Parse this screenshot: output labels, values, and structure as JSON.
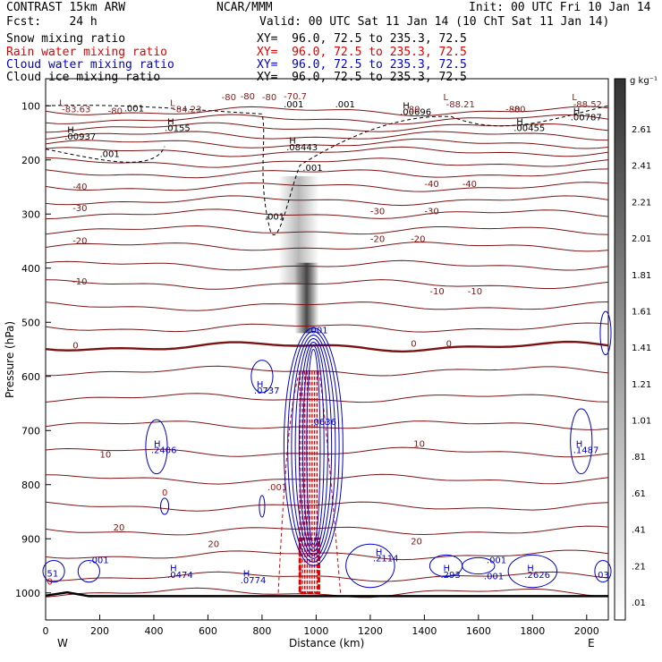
{
  "header": {
    "model": "CONTRAST 15km ARW",
    "org": "NCAR/MMM",
    "init": "Init: 00 UTC Fri 10 Jan 14",
    "fcst": "Fcst:    24 h",
    "valid": "Valid: 00 UTC Sat 11 Jan 14 (10 ChT Sat 11 Jan 14)"
  },
  "fields": [
    {
      "name": "Snow mixing ratio",
      "xy": "XY=  96.0, 72.5 to 235.3, 72.5",
      "color": "#000000"
    },
    {
      "name": "Rain water mixing ratio",
      "xy": "XY=  96.0, 72.5 to 235.3, 72.5",
      "color": "#e00000"
    },
    {
      "name": "Cloud water mixing ratio",
      "xy": "XY=  96.0, 72.5 to 235.3, 72.5",
      "color": "#0000cc"
    },
    {
      "name": "Cloud ice mixing ratio",
      "xy": "XY=  96.0, 72.5 to 235.3, 72.5",
      "color": "#000000"
    }
  ],
  "chart_data": {
    "type": "heatmap",
    "xlabel": "Distance (km)",
    "ylabel": "Pressure (hPa)",
    "xlim": [
      0,
      2080
    ],
    "ylim": [
      1050,
      50
    ],
    "x_ticks": [
      "0",
      "200",
      "400",
      "600",
      "800",
      "1000",
      "1200",
      "1400",
      "1600",
      "1800",
      "2000"
    ],
    "y_ticks": [
      "100",
      "200",
      "300",
      "400",
      "500",
      "600",
      "700",
      "800",
      "900",
      "1000"
    ],
    "x_end_labels": {
      "left": "W",
      "right": "E"
    },
    "colorbar": {
      "unit": "g kg⁻¹",
      "labels": [
        "2.61",
        "2.41",
        "2.21",
        "2.01",
        "1.81",
        "1.61",
        "1.41",
        "1.21",
        "1.01",
        ".81",
        ".61",
        ".41",
        ".21",
        ".01"
      ]
    },
    "temperature_isotherms": [
      {
        "value": -80,
        "label": "-80"
      },
      {
        "value": -40,
        "label": "-40"
      },
      {
        "value": -30,
        "label": "-30"
      },
      {
        "value": -20,
        "label": "-20"
      },
      {
        "value": -10,
        "label": "-10"
      },
      {
        "value": 0,
        "label": "0"
      },
      {
        "value": 10,
        "label": "10"
      },
      {
        "value": 20,
        "label": "20"
      }
    ],
    "annotations": [
      {
        "text": "L",
        "x": 50,
        "p": 100,
        "color": "#8b1a1a"
      },
      {
        "text": "-83.63",
        "x": 60,
        "p": 112,
        "color": "#8b1a1a"
      },
      {
        "text": "-80",
        "x": 230,
        "p": 115,
        "color": "#8b1a1a"
      },
      {
        "text": ".001",
        "x": 290,
        "p": 110,
        "color": "#000000"
      },
      {
        "text": "L",
        "x": 460,
        "p": 100,
        "color": "#8b1a1a"
      },
      {
        "text": "-84.23",
        "x": 470,
        "p": 112,
        "color": "#8b1a1a"
      },
      {
        "text": "-80",
        "x": 650,
        "p": 90,
        "color": "#8b1a1a"
      },
      {
        "text": "-80",
        "x": 800,
        "p": 90,
        "color": "#8b1a1a"
      },
      {
        "text": "-70.7",
        "x": 880,
        "p": 88,
        "color": "#8b1a1a"
      },
      {
        "text": ".001",
        "x": 880,
        "p": 103,
        "color": "#000000"
      },
      {
        "text": ".001",
        "x": 1070,
        "p": 103,
        "color": "#000000"
      },
      {
        "text": "L",
        "x": 1470,
        "p": 90,
        "color": "#8b1a1a"
      },
      {
        "text": "-88.21",
        "x": 1480,
        "p": 103,
        "color": "#8b1a1a"
      },
      {
        "text": "H",
        "x": 1320,
        "p": 105,
        "color": "#000000"
      },
      {
        "text": ".00696",
        "x": 1310,
        "p": 117,
        "color": "#000000"
      },
      {
        "text": "-80",
        "x": 1330,
        "p": 112,
        "color": "#8b1a1a"
      },
      {
        "text": "-80",
        "x": 1700,
        "p": 112,
        "color": "#8b1a1a"
      },
      {
        "text": "L",
        "x": 1945,
        "p": 90,
        "color": "#8b1a1a"
      },
      {
        "text": "-88.52",
        "x": 1950,
        "p": 103,
        "color": "#8b1a1a"
      },
      {
        "text": "H",
        "x": 1950,
        "p": 115,
        "color": "#000000"
      },
      {
        "text": ".00787",
        "x": 1940,
        "p": 127,
        "color": "#000000"
      },
      {
        "text": "H",
        "x": 1740,
        "p": 135,
        "color": "#000000"
      },
      {
        "text": ".00455",
        "x": 1730,
        "p": 147,
        "color": "#000000"
      },
      {
        "text": "H",
        "x": 80,
        "p": 150,
        "color": "#000000"
      },
      {
        "text": ".00937",
        "x": 70,
        "p": 162,
        "color": "#000000"
      },
      {
        "text": "H",
        "x": 450,
        "p": 135,
        "color": "#000000"
      },
      {
        "text": ".0155",
        "x": 440,
        "p": 147,
        "color": "#000000"
      },
      {
        "text": ".001",
        "x": 200,
        "p": 195,
        "color": "#000000"
      },
      {
        "text": "H",
        "x": 900,
        "p": 170,
        "color": "#000000"
      },
      {
        "text": ".08443",
        "x": 890,
        "p": 182,
        "color": "#000000"
      },
      {
        "text": ".001",
        "x": 950,
        "p": 220,
        "color": "#000000"
      },
      {
        "text": ".001",
        "x": 810,
        "p": 310,
        "color": "#000000"
      },
      {
        "text": ".001",
        "x": 970,
        "p": 520,
        "color": "#0000cc"
      },
      {
        "text": "H",
        "x": 780,
        "p": 620,
        "color": "#0000cc"
      },
      {
        "text": ".0737",
        "x": 770,
        "p": 632,
        "color": "#0000cc"
      },
      {
        "text": ".0636",
        "x": 980,
        "p": 690,
        "color": "#0000cc"
      },
      {
        "text": "H",
        "x": 400,
        "p": 730,
        "color": "#0000cc"
      },
      {
        "text": ".2406",
        "x": 390,
        "p": 742,
        "color": "#0000cc"
      },
      {
        "text": "H",
        "x": 1960,
        "p": 730,
        "color": "#0000cc"
      },
      {
        "text": ".1487",
        "x": 1950,
        "p": 742,
        "color": "#0000cc"
      },
      {
        "text": ".001",
        "x": 820,
        "p": 810,
        "color": "#e00000"
      },
      {
        "text": "0",
        "x": 430,
        "p": 820,
        "color": "#e00000"
      },
      {
        "text": "H",
        "x": 460,
        "p": 960,
        "color": "#0000cc"
      },
      {
        "text": ".0474",
        "x": 450,
        "p": 972,
        "color": "#0000cc"
      },
      {
        "text": ".001",
        "x": 160,
        "p": 945,
        "color": "#0000cc"
      },
      {
        "text": "H",
        "x": 730,
        "p": 970,
        "color": "#0000cc"
      },
      {
        "text": ".0774",
        "x": 720,
        "p": 982,
        "color": "#0000cc"
      },
      {
        "text": "H",
        "x": 1220,
        "p": 930,
        "color": "#0000cc"
      },
      {
        "text": ".2114",
        "x": 1210,
        "p": 942,
        "color": "#0000cc"
      },
      {
        "text": "H",
        "x": 1470,
        "p": 960,
        "color": "#0000cc"
      },
      {
        "text": ".293",
        "x": 1460,
        "p": 972,
        "color": "#0000cc"
      },
      {
        "text": ".001",
        "x": 1630,
        "p": 945,
        "color": "#0000cc"
      },
      {
        "text": ".001",
        "x": 1620,
        "p": 975,
        "color": "#0000cc"
      },
      {
        "text": "H",
        "x": 1780,
        "p": 960,
        "color": "#0000cc"
      },
      {
        "text": ".2626",
        "x": 1770,
        "p": 972,
        "color": "#0000cc"
      },
      {
        "text": ".03",
        "x": 2030,
        "p": 972,
        "color": "#0000cc"
      },
      {
        "text": "51",
        "x": 5,
        "p": 970,
        "color": "#0000cc"
      },
      {
        "text": "0",
        "x": 5,
        "p": 985,
        "color": "#e00000"
      }
    ]
  }
}
